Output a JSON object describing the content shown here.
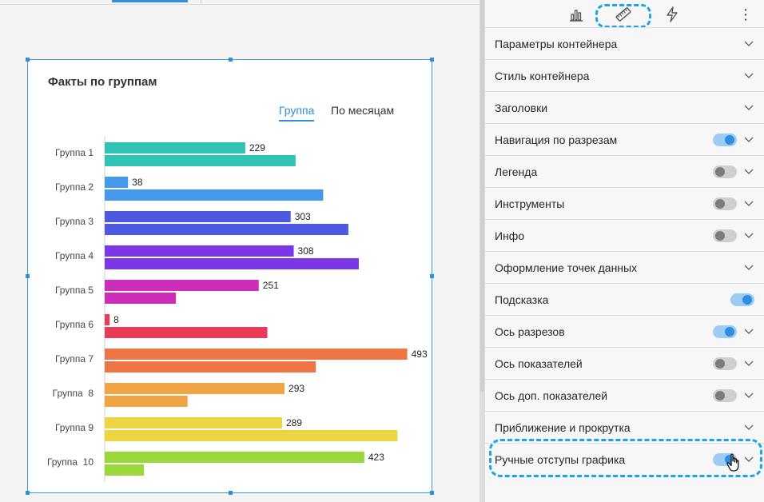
{
  "chart": {
    "title": "Факты по группам",
    "tabs": [
      {
        "label": "Группа",
        "active": true
      },
      {
        "label": "По месяцам",
        "active": false
      }
    ]
  },
  "chart_data": {
    "type": "bar",
    "orientation": "horizontal",
    "categories": [
      "Группа 1",
      "Группа 2",
      "Группа 3",
      "Группа 4",
      "Группа 5",
      "Группа 6",
      "Группа 7",
      "Группа  8",
      "Группа 9",
      "Группа  10"
    ],
    "series": [
      {
        "values": [
          229,
          38,
          303,
          308,
          251,
          8,
          493,
          293,
          289,
          423
        ]
      },
      {
        "values": [
          311,
          356,
          397,
          414,
          116,
          265,
          344,
          135,
          477,
          64
        ]
      }
    ],
    "value_labels_series": 0,
    "colors": [
      "#2ec3b4",
      "#4599ec",
      "#4d5ae0",
      "#7a36e8",
      "#cc2dbb",
      "#e93a57",
      "#ee7544",
      "#f0a443",
      "#eed440",
      "#98d83a"
    ],
    "xlim": [
      0,
      500
    ],
    "grid": false,
    "legend": "none"
  },
  "panel": {
    "tools": [
      {
        "icon": "bar-chart-icon"
      },
      {
        "icon": "ruler-icon",
        "active": true
      },
      {
        "icon": "lightning-icon"
      },
      {
        "icon": "more-vertical-icon",
        "glyph": "⋮"
      }
    ],
    "sections": [
      {
        "label": "Параметры контейнера",
        "toggle": null,
        "chevron": true
      },
      {
        "label": "Стиль контейнера",
        "toggle": null,
        "chevron": true
      },
      {
        "label": "Заголовки",
        "toggle": null,
        "chevron": true
      },
      {
        "label": "Навигация по разрезам",
        "toggle": true,
        "chevron": true
      },
      {
        "label": "Легенда",
        "toggle": false,
        "chevron": true
      },
      {
        "label": "Инструменты",
        "toggle": false,
        "chevron": true
      },
      {
        "label": "Инфо",
        "toggle": false,
        "chevron": true
      },
      {
        "label": "Оформление точек данных",
        "toggle": null,
        "chevron": true
      },
      {
        "label": "Подсказка",
        "toggle": true,
        "chevron": false
      },
      {
        "label": "Ось разрезов",
        "toggle": true,
        "chevron": true
      },
      {
        "label": "Ось показателей",
        "toggle": false,
        "chevron": true
      },
      {
        "label": "Ось доп. показателей",
        "toggle": false,
        "chevron": true
      },
      {
        "label": "Приближение и прокрутка",
        "toggle": null,
        "chevron": true
      },
      {
        "label": "Ручные отступы графика",
        "toggle": true,
        "chevron": true
      }
    ],
    "accent": "#2c8fe0",
    "highlight": "#1ea3e6"
  }
}
